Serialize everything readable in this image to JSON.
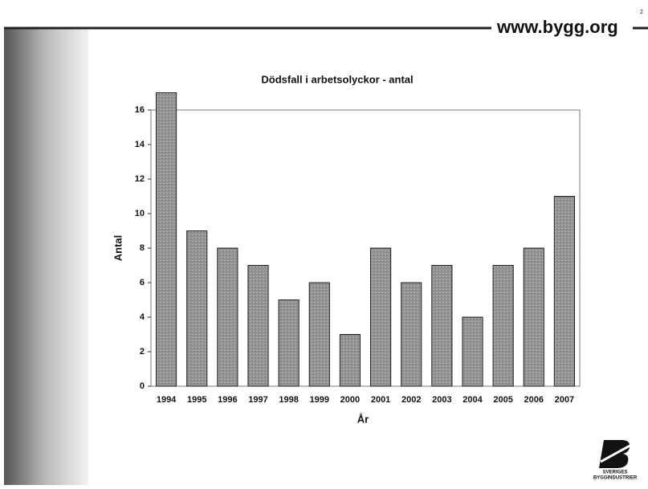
{
  "header": {
    "url": "www.bygg.org",
    "page": "2"
  },
  "logo": {
    "line1": "SVERIGES",
    "line2": "BYGGINDUSTRIER"
  },
  "chart_data": {
    "type": "bar",
    "title": "Dödsfall i arbetsolyckor - antal",
    "x_label": "År",
    "y_label": "Antal",
    "categories": [
      "1994",
      "1995",
      "1996",
      "1997",
      "1998",
      "1999",
      "2000",
      "2001",
      "2002",
      "2003",
      "2004",
      "2005",
      "2006",
      "2007"
    ],
    "values": [
      17,
      9,
      8,
      7,
      5,
      6,
      3,
      8,
      6,
      7,
      4,
      7,
      8,
      11
    ],
    "color": "#8c8c8c",
    "ylim": [
      0,
      18
    ],
    "yticks": [
      0,
      2,
      4,
      6,
      8,
      10,
      12,
      14,
      16,
      18
    ],
    "grid": false
  }
}
